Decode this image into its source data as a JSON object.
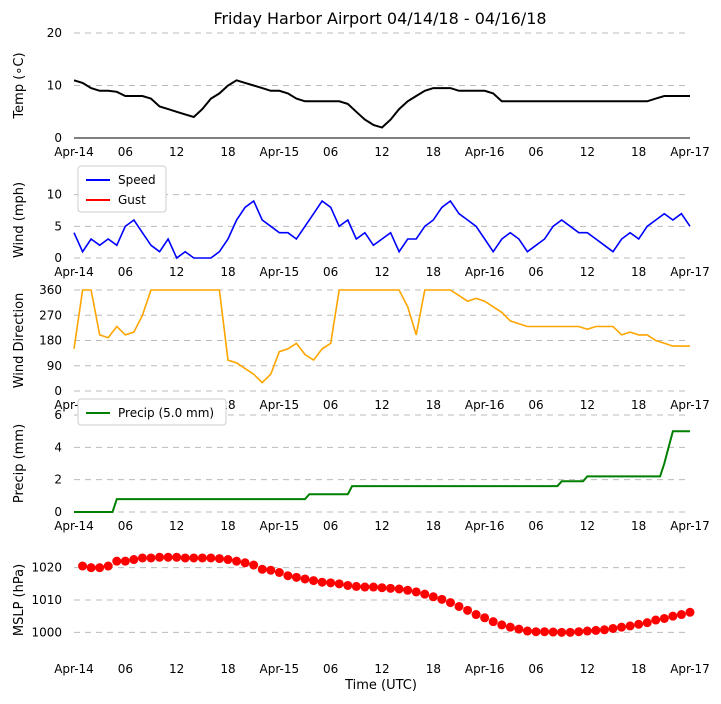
{
  "chart_data": {
    "type": "line",
    "title": "Friday Harbor Airport 04/14/18 - 04/16/18",
    "xlabel": "Time (UTC)",
    "x_ticks": [
      "Apr-14",
      "06",
      "12",
      "18",
      "Apr-15",
      "06",
      "12",
      "18",
      "Apr-16",
      "06",
      "12",
      "18",
      "Apr-17"
    ],
    "x_range_hours": [
      0,
      72
    ],
    "grid": true,
    "panels": [
      {
        "id": "temp",
        "ylabel": "Temp (∘C)",
        "ylim": [
          0,
          20
        ],
        "yticks": [
          "0",
          "10",
          "20"
        ],
        "series": [
          {
            "name": "Temp",
            "color": "#000000",
            "x": [
              0,
              1,
              2,
              3,
              4,
              5,
              6,
              7,
              8,
              9,
              10,
              11,
              12,
              13,
              14,
              15,
              16,
              17,
              18,
              19,
              20,
              21,
              22,
              23,
              24,
              25,
              26,
              27,
              28,
              29,
              30,
              31,
              32,
              33,
              34,
              35,
              36,
              37,
              38,
              39,
              40,
              41,
              42,
              43,
              44,
              45,
              46,
              47,
              48,
              49,
              50,
              51,
              52,
              53,
              54,
              55,
              56,
              57,
              58,
              59,
              60,
              61,
              62,
              63,
              64,
              65,
              66,
              67,
              68,
              69,
              70,
              71,
              72
            ],
            "values": [
              11,
              10.5,
              9.5,
              9,
              9,
              8.8,
              8,
              8,
              8,
              7.5,
              6,
              5.5,
              5,
              4.5,
              4,
              5.5,
              7.5,
              8.5,
              10,
              11,
              10.5,
              10,
              9.5,
              9,
              9,
              8.5,
              7.5,
              7,
              7,
              7,
              7,
              7,
              6.5,
              5,
              3.5,
              2.5,
              2,
              3.5,
              5.5,
              7,
              8,
              9,
              9.5,
              9.5,
              9.5,
              9,
              9,
              9,
              9,
              8.5,
              7,
              7,
              7,
              7,
              7,
              7,
              7,
              7,
              7,
              7,
              7,
              7,
              7,
              7,
              7,
              7,
              7,
              7,
              7.5,
              8,
              8,
              8,
              8
            ]
          }
        ]
      },
      {
        "id": "wind",
        "ylabel": "Wind (mph)",
        "ylim": [
          0,
          12
        ],
        "yticks": [
          "0",
          "5",
          "10"
        ],
        "legend": "top-left",
        "series": [
          {
            "name": "Speed",
            "color": "#0000ff",
            "x": [
              0,
              1,
              2,
              3,
              4,
              5,
              6,
              7,
              8,
              9,
              10,
              11,
              12,
              13,
              14,
              15,
              16,
              17,
              18,
              19,
              20,
              21,
              22,
              23,
              24,
              25,
              26,
              27,
              28,
              29,
              30,
              31,
              32,
              33,
              34,
              35,
              36,
              37,
              38,
              39,
              40,
              41,
              42,
              43,
              44,
              45,
              46,
              47,
              48,
              49,
              50,
              51,
              52,
              53,
              54,
              55,
              56,
              57,
              58,
              59,
              60,
              61,
              62,
              63,
              64,
              65,
              66,
              67,
              68,
              69,
              70,
              71,
              72
            ],
            "values": [
              4,
              1,
              3,
              2,
              3,
              2,
              5,
              6,
              4,
              2,
              1,
              3,
              0,
              1,
              0,
              0,
              0,
              1,
              3,
              6,
              8,
              9,
              6,
              5,
              4,
              4,
              3,
              5,
              7,
              9,
              8,
              5,
              6,
              3,
              4,
              2,
              3,
              4,
              1,
              3,
              3,
              5,
              6,
              8,
              9,
              7,
              6,
              5,
              3,
              1,
              3,
              4,
              3,
              1,
              2,
              3,
              5,
              6,
              5,
              4,
              4,
              3,
              2,
              1,
              3,
              4,
              3,
              5,
              6,
              7,
              6,
              7,
              5
            ]
          },
          {
            "name": "Gust",
            "color": "#ff0000",
            "x": [],
            "values": []
          }
        ]
      },
      {
        "id": "winddir",
        "ylabel": "Wind Direction",
        "ylim": [
          0,
          360
        ],
        "yticks": [
          "0",
          "90",
          "180",
          "270",
          "360"
        ],
        "series": [
          {
            "name": "Wind Direction",
            "color": "#ffa500",
            "x": [
              0,
              1,
              2,
              3,
              4,
              5,
              6,
              7,
              8,
              9,
              10,
              11,
              12,
              13,
              14,
              15,
              16,
              17,
              18,
              19,
              20,
              21,
              22,
              23,
              24,
              25,
              26,
              27,
              28,
              29,
              30,
              31,
              32,
              33,
              34,
              35,
              36,
              37,
              38,
              39,
              40,
              41,
              42,
              43,
              44,
              45,
              46,
              47,
              48,
              49,
              50,
              51,
              52,
              53,
              54,
              55,
              56,
              57,
              58,
              59,
              60,
              61,
              62,
              63,
              64,
              65,
              66,
              67,
              68,
              69,
              70,
              71,
              72
            ],
            "values": [
              150,
              360,
              360,
              200,
              190,
              230,
              200,
              210,
              270,
              360,
              360,
              360,
              360,
              360,
              360,
              360,
              360,
              360,
              110,
              100,
              80,
              60,
              30,
              60,
              140,
              150,
              170,
              130,
              110,
              150,
              170,
              360,
              360,
              360,
              360,
              360,
              360,
              360,
              360,
              300,
              200,
              360,
              360,
              360,
              360,
              340,
              320,
              330,
              320,
              300,
              280,
              250,
              240,
              230,
              230,
              230,
              230,
              230,
              230,
              230,
              220,
              230,
              230,
              230,
              200,
              210,
              200,
              200,
              180,
              170,
              160,
              160,
              160
            ]
          }
        ]
      },
      {
        "id": "precip",
        "ylabel": "Precip (mm)",
        "ylim": [
          0,
          6
        ],
        "yticks": [
          "0",
          "2",
          "4",
          "6"
        ],
        "legend": "top-left",
        "series": [
          {
            "name": "Precip (5.0 mm)",
            "color": "#008000",
            "x": [
              0,
              4.5,
              5,
              27,
              27.5,
              32,
              32.5,
              56.5,
              57,
              59.5,
              60,
              68.5,
              69,
              69.5,
              70,
              72
            ],
            "values": [
              0,
              0,
              0.8,
              0.8,
              1.1,
              1.1,
              1.6,
              1.6,
              1.9,
              1.9,
              2.2,
              2.2,
              3.0,
              4.0,
              5.0,
              5.0
            ]
          }
        ]
      },
      {
        "id": "mslp",
        "ylabel": "MSLP (hPa)",
        "ylim": [
          993,
          1027
        ],
        "yticks": [
          "1000",
          "1010",
          "1020"
        ],
        "series": [
          {
            "name": "MSLP",
            "color": "#ff0000",
            "x": [
              1,
              2,
              3,
              4,
              5,
              6,
              7,
              8,
              9,
              10,
              11,
              12,
              13,
              14,
              15,
              16,
              17,
              18,
              19,
              20,
              21,
              22,
              23,
              24,
              25,
              26,
              27,
              28,
              29,
              30,
              31,
              32,
              33,
              34,
              35,
              36,
              37,
              38,
              39,
              40,
              41,
              42,
              43,
              44,
              45,
              46,
              47,
              48,
              49,
              50,
              51,
              52,
              53,
              54,
              55,
              56,
              57,
              58,
              59,
              60,
              61,
              62,
              63,
              64,
              65,
              66,
              67,
              68,
              69,
              70,
              71,
              72
            ],
            "values": [
              1020.5,
              1020,
              1020,
              1020.5,
              1022,
              1022,
              1022.5,
              1023,
              1023,
              1023.2,
              1023.2,
              1023.2,
              1023,
              1023,
              1023,
              1023,
              1022.8,
              1022.5,
              1022,
              1021.5,
              1020.8,
              1019.5,
              1019.2,
              1018.5,
              1017.5,
              1017,
              1016.5,
              1016,
              1015.5,
              1015.3,
              1015,
              1014.5,
              1014.2,
              1014,
              1014,
              1013.8,
              1013.6,
              1013.4,
              1013,
              1012.5,
              1011.8,
              1011,
              1010.2,
              1009.2,
              1008,
              1006.8,
              1005.5,
              1004.5,
              1003.3,
              1002.3,
              1001.6,
              1001,
              1000.4,
              1000.2,
              1000.2,
              1000.1,
              1000,
              1000,
              1000.2,
              1000.4,
              1000.6,
              1000.8,
              1001.2,
              1001.6,
              1002,
              1002.5,
              1003,
              1003.8,
              1004.3,
              1005,
              1005.5,
              1006.2
            ]
          }
        ]
      }
    ]
  }
}
